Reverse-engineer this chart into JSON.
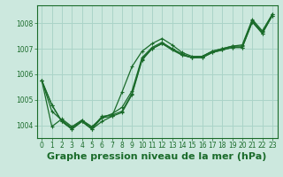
{
  "background_color": "#cce8de",
  "grid_color": "#aad4c8",
  "line_color": "#1a6b2a",
  "marker_color": "#1a6b2a",
  "title": "Graphe pression niveau de la mer (hPa)",
  "ylim": [
    1003.5,
    1008.7
  ],
  "xlim": [
    -0.5,
    23.5
  ],
  "yticks": [
    1004,
    1005,
    1006,
    1007,
    1008
  ],
  "xtick_labels": [
    "0",
    "1",
    "2",
    "3",
    "4",
    "5",
    "6",
    "7",
    "8",
    "9",
    "10",
    "11",
    "12",
    "13",
    "14",
    "15",
    "16",
    "17",
    "18",
    "19",
    "20",
    "21",
    "22",
    "23"
  ],
  "series": [
    [
      1005.75,
      1004.8,
      1004.15,
      1003.85,
      1004.15,
      1003.85,
      1004.15,
      1004.35,
      1004.5,
      1005.2,
      1006.55,
      1007.0,
      1007.2,
      1007.0,
      1006.8,
      1006.65,
      1006.65,
      1006.85,
      1006.95,
      1007.05,
      1007.05,
      1008.05,
      1007.6,
      1008.3
    ],
    [
      1005.75,
      1004.8,
      1004.15,
      1003.85,
      1004.15,
      1003.85,
      1004.3,
      1004.45,
      1004.7,
      1005.35,
      1006.65,
      1007.05,
      1007.25,
      1007.0,
      1006.75,
      1006.65,
      1006.7,
      1006.9,
      1007.0,
      1007.1,
      1007.1,
      1008.1,
      1007.65,
      1008.35
    ],
    [
      1005.75,
      1004.55,
      1004.2,
      1003.9,
      1004.2,
      1003.9,
      1004.35,
      1004.4,
      1004.55,
      1005.25,
      1006.6,
      1007.0,
      1007.2,
      1006.95,
      1006.75,
      1006.65,
      1006.65,
      1006.85,
      1006.95,
      1007.05,
      1007.05,
      1008.05,
      1007.6,
      1008.3
    ],
    [
      1005.75,
      1003.95,
      1004.25,
      1003.95,
      1004.2,
      1003.95,
      1004.3,
      1004.35,
      1005.3,
      1006.3,
      1006.9,
      1007.2,
      1007.4,
      1007.15,
      1006.85,
      1006.7,
      1006.7,
      1006.9,
      1007.0,
      1007.1,
      1007.15,
      1008.15,
      1007.7,
      1008.35
    ]
  ],
  "title_fontsize": 8,
  "tick_fontsize": 5.5,
  "linewidth": 0.9,
  "markersize": 2.0
}
